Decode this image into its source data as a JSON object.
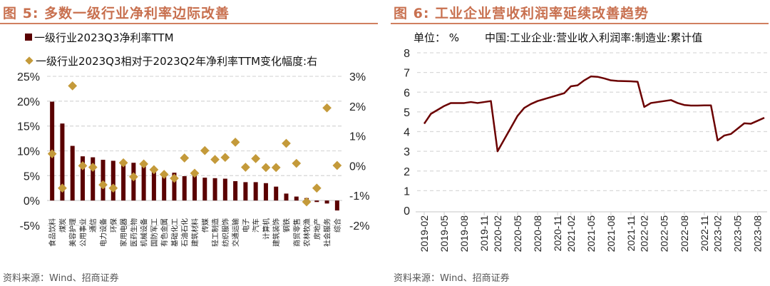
{
  "left": {
    "title": "图 5:  多数一级行业净利率边际改善",
    "source": "资料来源：Wind、招商证券"
  },
  "right": {
    "title": "图 6:  工业企业营收利润率延续改善趋势",
    "source": "资料来源：Wind、招商证券"
  },
  "chart_data": [
    {
      "type": "bar",
      "title": "多数一级行业净利率边际改善",
      "categories": [
        "食品饮料",
        "煤炭",
        "美容护理",
        "公用事业",
        "通信",
        "电力设备",
        "环保",
        "家用电器",
        "医药生物",
        "机械设备",
        "国防军工",
        "有色金属",
        "基础化工",
        "石油石化",
        "建筑材料",
        "传媒",
        "轻工制造",
        "纺织服饰",
        "交通运输",
        "电子",
        "汽车",
        "计算机",
        "建筑装饰",
        "钢铁",
        "商贸零售",
        "农林牧渔",
        "房地产",
        "社会服务",
        "综合"
      ],
      "series": [
        {
          "name": "一级行业2023Q3净利率TTM",
          "axis": "left",
          "type": "bar",
          "color": "#5a0000",
          "values": [
            19.9,
            15.5,
            11.0,
            8.9,
            8.7,
            8.2,
            8.0,
            7.8,
            7.6,
            7.1,
            6.2,
            5.3,
            5.6,
            4.9,
            5.0,
            4.6,
            4.5,
            4.4,
            3.9,
            3.7,
            3.7,
            3.5,
            2.8,
            1.4,
            0.8,
            0.5,
            -0.3,
            -0.6,
            -2.0
          ]
        },
        {
          "name": "一级行业2023Q3相对于2023Q2年净利率TTM变化幅度:右",
          "axis": "right",
          "type": "scatter",
          "color": "#c49a3a",
          "values": [
            0.4,
            -0.75,
            2.68,
            0.0,
            -0.05,
            -0.64,
            -0.75,
            0.1,
            -0.37,
            0.06,
            -0.13,
            -0.29,
            -0.42,
            0.26,
            -0.25,
            0.51,
            0.21,
            0.28,
            0.79,
            -0.05,
            0.24,
            -0.06,
            -0.06,
            0.75,
            0.08,
            -1.21,
            -0.75,
            1.94,
            0.01
          ]
        }
      ],
      "y_left": {
        "ticks": [
          "25%",
          "20%",
          "15%",
          "10%",
          "5%",
          "0%",
          "-5%"
        ],
        "range": [
          -5,
          25
        ]
      },
      "y_right": {
        "ticks": [
          "3%",
          "2%",
          "1%",
          "0%",
          "-1%",
          "-2%"
        ],
        "range": [
          -2,
          3
        ]
      },
      "grid": true,
      "legend_placement": "top-left"
    },
    {
      "type": "line",
      "title": "工业企业营收利润率延续改善趋势",
      "unit_label": "单位：  %",
      "series_name": "中国:工业企业:营业收入利润率:制造业:累计值",
      "x": [
        "2019-02",
        "2019-03",
        "2019-04",
        "2019-05",
        "2019-06",
        "2019-07",
        "2019-08",
        "2019-09",
        "2019-10",
        "2019-11",
        "2019-12",
        "2020-02",
        "2020-03",
        "2020-04",
        "2020-05",
        "2020-06",
        "2020-07",
        "2020-08",
        "2020-09",
        "2020-10",
        "2020-11",
        "2020-12",
        "2021-02",
        "2021-03",
        "2021-04",
        "2021-05",
        "2021-06",
        "2021-07",
        "2021-08",
        "2021-09",
        "2021-10",
        "2021-11",
        "2021-12",
        "2022-02",
        "2022-03",
        "2022-04",
        "2022-05",
        "2022-06",
        "2022-07",
        "2022-08",
        "2022-09",
        "2022-10",
        "2022-11",
        "2022-12",
        "2023-02",
        "2023-03",
        "2023-04",
        "2023-05",
        "2023-06",
        "2023-07",
        "2023-08",
        "2023-09"
      ],
      "values": [
        4.4,
        4.9,
        5.1,
        5.3,
        5.45,
        5.45,
        5.45,
        5.5,
        5.45,
        5.5,
        5.55,
        3.0,
        3.6,
        4.2,
        4.8,
        5.2,
        5.4,
        5.55,
        5.65,
        5.75,
        5.85,
        5.95,
        6.3,
        6.35,
        6.6,
        6.8,
        6.78,
        6.7,
        6.6,
        6.57,
        6.56,
        6.55,
        6.53,
        5.25,
        5.45,
        5.5,
        5.55,
        5.6,
        5.45,
        5.35,
        5.32,
        5.32,
        5.33,
        5.33,
        3.55,
        3.8,
        3.88,
        4.15,
        4.42,
        4.4,
        4.55,
        4.7
      ],
      "x_tick_labels": [
        "2019-02",
        "2019-05",
        "2019-08",
        "2019-11",
        "2020-02",
        "2020-05",
        "2020-08",
        "2020-11",
        "2021-02",
        "2021-05",
        "2021-08",
        "2021-11",
        "2022-02",
        "2022-05",
        "2022-08",
        "2022-11",
        "2023-02",
        "2023-05",
        "2023-08"
      ],
      "y_ticks": [
        "8",
        "7",
        "6",
        "5",
        "4",
        "3",
        "2",
        "1",
        "0"
      ],
      "ylim": [
        0,
        8
      ],
      "color": "#6b0000",
      "grid": true
    }
  ]
}
